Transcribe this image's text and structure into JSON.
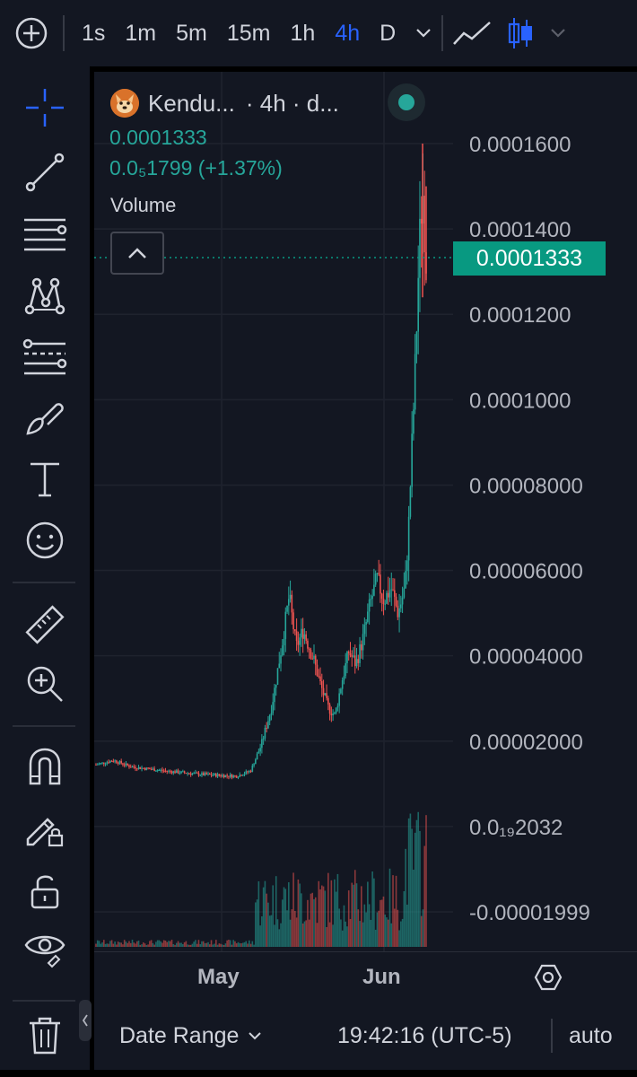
{
  "toolbar": {
    "intervals": [
      "1s",
      "1m",
      "5m",
      "15m",
      "1h",
      "4h",
      "D"
    ],
    "active_interval": "4h",
    "icons": [
      "plus-circle-icon",
      "chevron-down-icon",
      "line-chart-icon",
      "candles-icon",
      "chevron-down-icon"
    ]
  },
  "sidebar": {
    "tools": [
      "crosshair-icon",
      "trend-line-icon",
      "horizontal-lines-icon",
      "pattern-icon",
      "fib-lines-icon",
      "brush-icon",
      "text-icon",
      "emoji-icon",
      "ruler-icon",
      "zoom-in-icon",
      "magnet-icon",
      "pencil-lock-icon",
      "unlock-icon",
      "eye-icon",
      "trash-icon"
    ]
  },
  "legend": {
    "symbol": "Kendu...",
    "details": "· 4h · d...",
    "price": "0.0001333",
    "change": "0.0₅1799 (+1.37%)",
    "volume_label": "Volume"
  },
  "price_axis": {
    "labels": [
      "0.0001600",
      "0.0001400",
      "0.0001200",
      "0.0001000",
      "0.00008000",
      "0.00006000",
      "0.00004000",
      "0.00002000",
      "0.0₁₉2032",
      "-0.00001999"
    ],
    "current_price_tag": "0.0001333"
  },
  "time_axis": {
    "labels": [
      "May",
      "Jun"
    ]
  },
  "bottom_bar": {
    "date_range": "Date Range",
    "time": "19:42:16 (UTC-5)",
    "scale": "auto"
  },
  "colors": {
    "up": "#26a69a",
    "down": "#ef5350",
    "accent": "#2962ff",
    "background": "#131722"
  },
  "chart_data": {
    "type": "candlestick",
    "title": "",
    "xlabel": "",
    "ylabel": "",
    "x_ticks": [
      "May",
      "Jun"
    ],
    "ylim": [
      -2e-05,
      0.00016
    ],
    "current_price": 0.0001333,
    "close_path": [
      {
        "x": 0,
        "y": 1.45e-05
      },
      {
        "x": 5,
        "y": 1.55e-05
      },
      {
        "x": 10,
        "y": 1.4e-05
      },
      {
        "x": 20,
        "y": 1.3e-05
      },
      {
        "x": 30,
        "y": 1.22e-05
      },
      {
        "x": 40,
        "y": 1.18e-05
      },
      {
        "x": 44,
        "y": 1.3e-05
      },
      {
        "x": 47,
        "y": 1.9e-05
      },
      {
        "x": 50,
        "y": 2.8e-05
      },
      {
        "x": 53,
        "y": 4.3e-05
      },
      {
        "x": 55,
        "y": 5.4e-05
      },
      {
        "x": 57,
        "y": 4.2e-05
      },
      {
        "x": 59,
        "y": 4.6e-05
      },
      {
        "x": 62,
        "y": 3.9e-05
      },
      {
        "x": 64,
        "y": 3.3e-05
      },
      {
        "x": 66,
        "y": 2.8e-05
      },
      {
        "x": 68,
        "y": 2.6e-05
      },
      {
        "x": 70,
        "y": 3.4e-05
      },
      {
        "x": 72,
        "y": 4.1e-05
      },
      {
        "x": 74,
        "y": 3.8e-05
      },
      {
        "x": 76,
        "y": 4.4e-05
      },
      {
        "x": 78,
        "y": 5.2e-05
      },
      {
        "x": 80,
        "y": 5.8e-05
      },
      {
        "x": 82,
        "y": 5.3e-05
      },
      {
        "x": 84,
        "y": 5.6e-05
      },
      {
        "x": 86,
        "y": 5e-05
      },
      {
        "x": 88,
        "y": 5.6e-05
      },
      {
        "x": 89,
        "y": 7e-05
      },
      {
        "x": 90,
        "y": 9e-05
      },
      {
        "x": 91,
        "y": 0.00011
      },
      {
        "x": 92,
        "y": 0.000135
      },
      {
        "x": 93,
        "y": 0.00015
      },
      {
        "x": 94,
        "y": 0.0001333
      }
    ]
  }
}
